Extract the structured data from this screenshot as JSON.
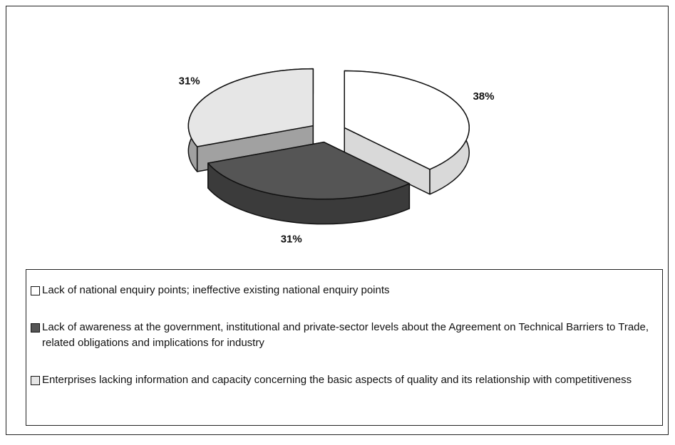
{
  "chart_data": {
    "type": "pie",
    "categories": [
      "Lack of national enquiry points; ineffective existing national enquiry points",
      "Lack of awareness at the government, institutional and private-sector levels about the Agreement on Technical Barriers to Trade, related obligations and implications for industry",
      "Enterprises lacking information and capacity concerning the basic aspects of quality and its relationship with competitiveness"
    ],
    "values": [
      38,
      31,
      31
    ],
    "value_labels": [
      "38%",
      "31%",
      "31%"
    ],
    "colors": [
      "#ffffff",
      "#555555",
      "#e6e6e6"
    ],
    "three_d": true,
    "exploded": true
  }
}
